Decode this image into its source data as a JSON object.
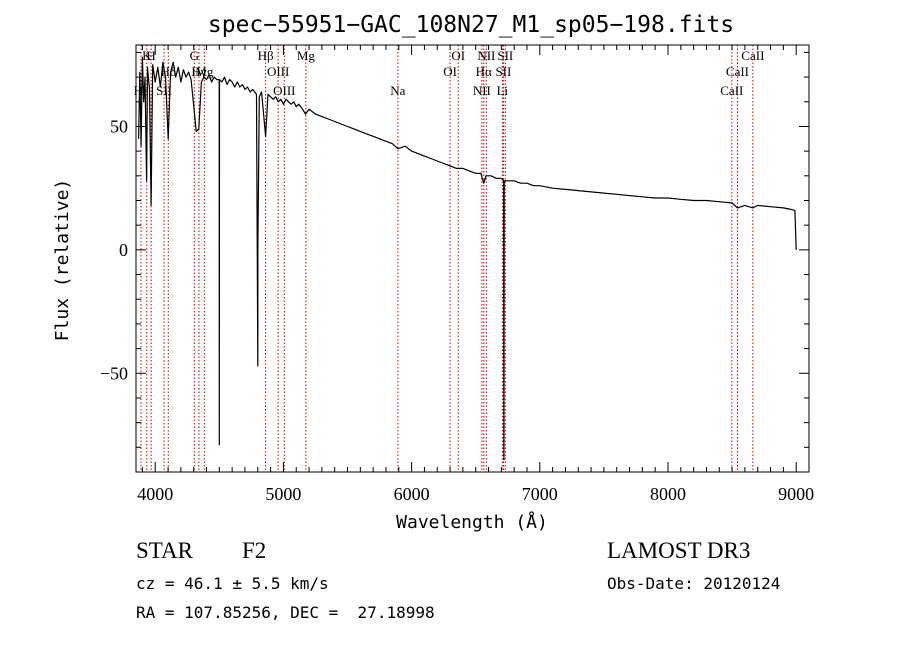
{
  "chart_data": {
    "type": "line",
    "title": "spec−55951−GAC_108N27_M1_sp05−198.fits",
    "xlabel": "Wavelength (Å)",
    "ylabel": "Flux (relative)",
    "xlim": [
      3850,
      9100
    ],
    "ylim": [
      -90,
      83
    ],
    "x_ticks": [
      4000,
      5000,
      6000,
      7000,
      8000,
      9000
    ],
    "x_tick_labels": [
      "4000",
      "5000",
      "6000",
      "7000",
      "8000",
      "9000"
    ],
    "y_ticks": [
      -50,
      0,
      50
    ],
    "y_tick_labels": [
      "−50",
      "0",
      "50"
    ],
    "grid": false,
    "series": [
      {
        "name": "spectrum",
        "color": "#000000",
        "points": [
          [
            3870,
            45
          ],
          [
            3880,
            72
          ],
          [
            3890,
            42
          ],
          [
            3900,
            78
          ],
          [
            3910,
            60
          ],
          [
            3920,
            70
          ],
          [
            3933,
            28
          ],
          [
            3940,
            74
          ],
          [
            3955,
            65
          ],
          [
            3968,
            18
          ],
          [
            3980,
            75
          ],
          [
            4000,
            68
          ],
          [
            4020,
            74
          ],
          [
            4040,
            66
          ],
          [
            4060,
            76
          ],
          [
            4080,
            70
          ],
          [
            4101,
            45
          ],
          [
            4120,
            72
          ],
          [
            4140,
            76
          ],
          [
            4160,
            70
          ],
          [
            4180,
            74
          ],
          [
            4200,
            68
          ],
          [
            4220,
            73
          ],
          [
            4240,
            70
          ],
          [
            4260,
            72
          ],
          [
            4280,
            69
          ],
          [
            4305,
            56
          ],
          [
            4320,
            48
          ],
          [
            4340,
            49
          ],
          [
            4360,
            68
          ],
          [
            4380,
            70
          ],
          [
            4400,
            69
          ],
          [
            4420,
            71
          ],
          [
            4440,
            68
          ],
          [
            4460,
            70
          ],
          [
            4480,
            69
          ],
          [
            4499,
            69
          ],
          [
            4500,
            -79
          ],
          [
            4501,
            69
          ],
          [
            4520,
            68
          ],
          [
            4540,
            70
          ],
          [
            4560,
            67
          ],
          [
            4580,
            69
          ],
          [
            4600,
            68
          ],
          [
            4620,
            66
          ],
          [
            4640,
            68
          ],
          [
            4660,
            66
          ],
          [
            4680,
            67
          ],
          [
            4700,
            65
          ],
          [
            4720,
            66
          ],
          [
            4740,
            64
          ],
          [
            4760,
            65
          ],
          [
            4790,
            63
          ],
          [
            4800,
            -47
          ],
          [
            4801,
            3
          ],
          [
            4812,
            62
          ],
          [
            4830,
            64
          ],
          [
            4861,
            46
          ],
          [
            4880,
            63
          ],
          [
            4900,
            62
          ],
          [
            4920,
            61
          ],
          [
            4940,
            62
          ],
          [
            4960,
            60
          ],
          [
            4980,
            61
          ],
          [
            5000,
            59
          ],
          [
            5020,
            61
          ],
          [
            5040,
            60
          ],
          [
            5060,
            59
          ],
          [
            5080,
            60
          ],
          [
            5100,
            58
          ],
          [
            5120,
            59
          ],
          [
            5150,
            57
          ],
          [
            5172,
            55
          ],
          [
            5200,
            57
          ],
          [
            5250,
            55
          ],
          [
            5300,
            54
          ],
          [
            5350,
            53
          ],
          [
            5400,
            52
          ],
          [
            5450,
            51
          ],
          [
            5500,
            50
          ],
          [
            5550,
            49
          ],
          [
            5600,
            48
          ],
          [
            5650,
            47
          ],
          [
            5700,
            46
          ],
          [
            5750,
            45
          ],
          [
            5800,
            44
          ],
          [
            5850,
            43
          ],
          [
            5893,
            41
          ],
          [
            5950,
            42
          ],
          [
            6000,
            40
          ],
          [
            6050,
            39
          ],
          [
            6100,
            38
          ],
          [
            6150,
            37
          ],
          [
            6200,
            36
          ],
          [
            6250,
            35
          ],
          [
            6300,
            34
          ],
          [
            6350,
            33
          ],
          [
            6400,
            33
          ],
          [
            6450,
            32
          ],
          [
            6500,
            31
          ],
          [
            6540,
            31
          ],
          [
            6563,
            27
          ],
          [
            6580,
            30
          ],
          [
            6620,
            30
          ],
          [
            6660,
            29
          ],
          [
            6700,
            29
          ],
          [
            6718,
            28
          ],
          [
            6720,
            -85
          ],
          [
            6722,
            28
          ],
          [
            6750,
            28
          ],
          [
            6800,
            28
          ],
          [
            6850,
            27
          ],
          [
            6900,
            27
          ],
          [
            6950,
            26
          ],
          [
            7000,
            26
          ],
          [
            7100,
            25
          ],
          [
            7200,
            24.5
          ],
          [
            7300,
            24
          ],
          [
            7400,
            23.5
          ],
          [
            7500,
            23
          ],
          [
            7600,
            22.5
          ],
          [
            7700,
            22
          ],
          [
            7800,
            21.5
          ],
          [
            7900,
            21
          ],
          [
            8000,
            21
          ],
          [
            8100,
            20.5
          ],
          [
            8200,
            20
          ],
          [
            8300,
            20
          ],
          [
            8400,
            19.5
          ],
          [
            8500,
            19
          ],
          [
            8542,
            17
          ],
          [
            8600,
            18
          ],
          [
            8662,
            17
          ],
          [
            8700,
            18
          ],
          [
            8800,
            17.5
          ],
          [
            8900,
            17
          ],
          [
            8950,
            16.5
          ],
          [
            8990,
            16
          ],
          [
            9000,
            0
          ]
        ]
      }
    ],
    "spectral_lines": [
      {
        "label": "Hε",
        "wavelength": 3889,
        "row": 3
      },
      {
        "label": "K",
        "wavelength": 3934,
        "row": 1
      },
      {
        "label": "H",
        "wavelength": 3968,
        "row": 1
      },
      {
        "label": "Hδ",
        "wavelength": 4102,
        "row": 2
      },
      {
        "label": "SII",
        "wavelength": 4069,
        "row": 3
      },
      {
        "label": "G",
        "wavelength": 4305,
        "row": 1
      },
      {
        "label": "Hγ",
        "wavelength": 4341,
        "row": 2
      },
      {
        "label": "Mg",
        "wavelength": 4383,
        "row": 2
      },
      {
        "label": "Hβ",
        "wavelength": 4861,
        "row": 1
      },
      {
        "label": "OIII",
        "wavelength": 4959,
        "row": 2
      },
      {
        "label": "OIII",
        "wavelength": 5007,
        "row": 3
      },
      {
        "label": "Mg",
        "wavelength": 5175,
        "row": 1
      },
      {
        "label": "Na",
        "wavelength": 5893,
        "row": 3
      },
      {
        "label": "OI",
        "wavelength": 6300,
        "row": 2
      },
      {
        "label": "OI",
        "wavelength": 6364,
        "row": 1
      },
      {
        "label": "NII",
        "wavelength": 6548,
        "row": 3
      },
      {
        "label": "Hα",
        "wavelength": 6563,
        "row": 2
      },
      {
        "label": "NII",
        "wavelength": 6583,
        "row": 1
      },
      {
        "label": "SII",
        "wavelength": 6716,
        "row": 2
      },
      {
        "label": "Li",
        "wavelength": 6708,
        "row": 3
      },
      {
        "label": "SII",
        "wavelength": 6731,
        "row": 1
      },
      {
        "label": "CaII",
        "wavelength": 8498,
        "row": 3
      },
      {
        "label": "CaII",
        "wavelength": 8542,
        "row": 2
      },
      {
        "label": "CaII",
        "wavelength": 8662,
        "row": 1
      }
    ],
    "line_color": "#cc0000"
  },
  "info": {
    "object_class": "STAR",
    "subclass": "F2",
    "redshift": "cz = 46.1 ± 5.5 km/s",
    "coords": "RA = 107.85256, DEC =  27.18998",
    "survey": "LAMOST DR3",
    "obs_date": "Obs-Date: 20120124"
  }
}
